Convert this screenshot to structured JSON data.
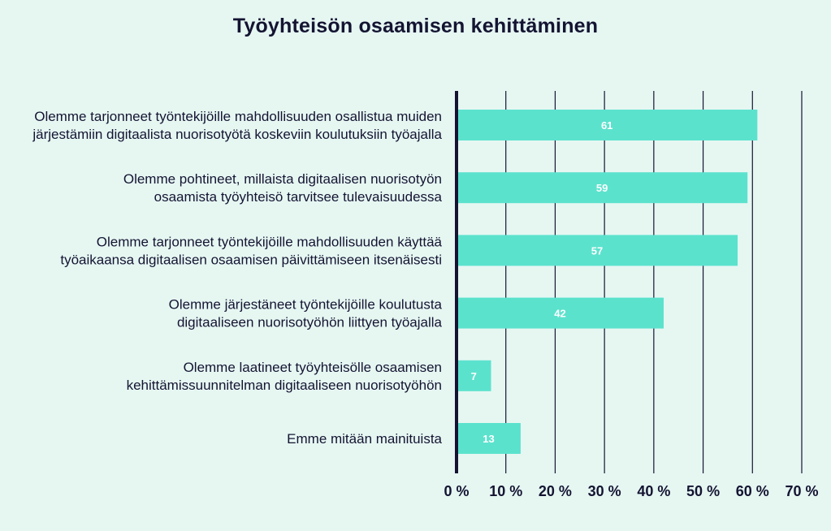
{
  "chart_data": {
    "type": "bar",
    "orientation": "horizontal",
    "title": "Työyhteisön osaamisen kehittäminen",
    "categories": [
      [
        "Olemme tarjonneet työntekijöille mahdollisuuden osallistua muiden",
        "järjestämiin digitaalista nuorisotyötä koskeviin koulutuksiin työajalla"
      ],
      [
        "Olemme pohtineet, millaista digitaalisen nuorisotyön",
        "osaamista työyhteisö tarvitsee tulevaisuudessa"
      ],
      [
        "Olemme tarjonneet työntekijöille mahdollisuuden käyttää",
        "työaikaansa digitaalisen osaamisen päivittämiseen itsenäisesti"
      ],
      [
        "Olemme järjestäneet työntekijöille koulutusta",
        "digitaaliseen nuorisotyöhön liittyen työajalla"
      ],
      [
        "Olemme laatineet työyhteisölle osaamisen",
        "kehittämissuunnitelman digitaaliseen nuorisotyöhön"
      ],
      [
        "Emme mitään mainituista"
      ]
    ],
    "values": [
      61,
      59,
      57,
      42,
      7,
      13
    ],
    "value_labels": [
      "61",
      "59",
      "57",
      "42",
      "7",
      "13"
    ],
    "xlim": [
      0,
      70
    ],
    "x_ticks": [
      0,
      10,
      20,
      30,
      40,
      50,
      60,
      70
    ],
    "x_tick_labels": [
      "0 %",
      "10 %",
      "20 %",
      "30 %",
      "40 %",
      "50 %",
      "60 %",
      "70 %"
    ],
    "grid": true,
    "colors": {
      "bar": "#5be2cd",
      "gridline": "#141432",
      "text": "#141432",
      "value_text": "#ffffff",
      "background": "#e6f7f2"
    }
  }
}
